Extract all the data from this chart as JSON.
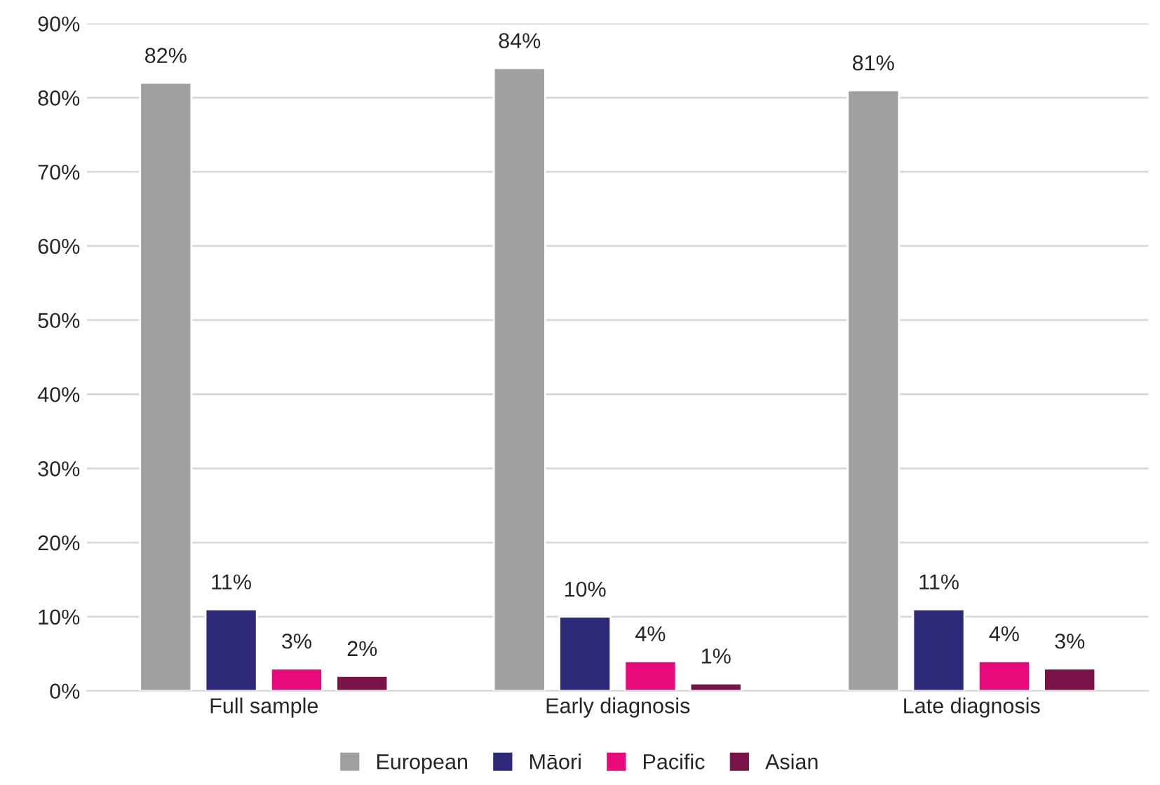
{
  "chart_data": {
    "type": "bar",
    "categories": [
      "Full sample",
      "Early diagnosis",
      "Late diagnosis"
    ],
    "series": [
      {
        "name": "European",
        "color": "#a0a0a0",
        "values": [
          82,
          84,
          81
        ],
        "value_labels": [
          "82%",
          "84%",
          "81%"
        ]
      },
      {
        "name": "Māori",
        "color": "#2e2878",
        "values": [
          11,
          10,
          11
        ],
        "value_labels": [
          "11%",
          "10%",
          "11%"
        ]
      },
      {
        "name": "Pacific",
        "color": "#e8097a",
        "values": [
          3,
          4,
          4
        ],
        "value_labels": [
          "3%",
          "4%",
          "4%"
        ]
      },
      {
        "name": "Asian",
        "color": "#7a1448",
        "values": [
          2,
          1,
          3
        ],
        "value_labels": [
          "2%",
          "1%",
          "3%"
        ]
      }
    ],
    "ylim": [
      0,
      90
    ],
    "yticks": [
      {
        "value": 0,
        "label": "0%"
      },
      {
        "value": 10,
        "label": "10%"
      },
      {
        "value": 20,
        "label": "20%"
      },
      {
        "value": 30,
        "label": "30%"
      },
      {
        "value": 40,
        "label": "40%"
      },
      {
        "value": 50,
        "label": "50%"
      },
      {
        "value": 60,
        "label": "60%"
      },
      {
        "value": 70,
        "label": "70%"
      },
      {
        "value": 80,
        "label": "80%"
      },
      {
        "value": 90,
        "label": "90%"
      }
    ],
    "grid": "y",
    "legend": "bottom"
  }
}
